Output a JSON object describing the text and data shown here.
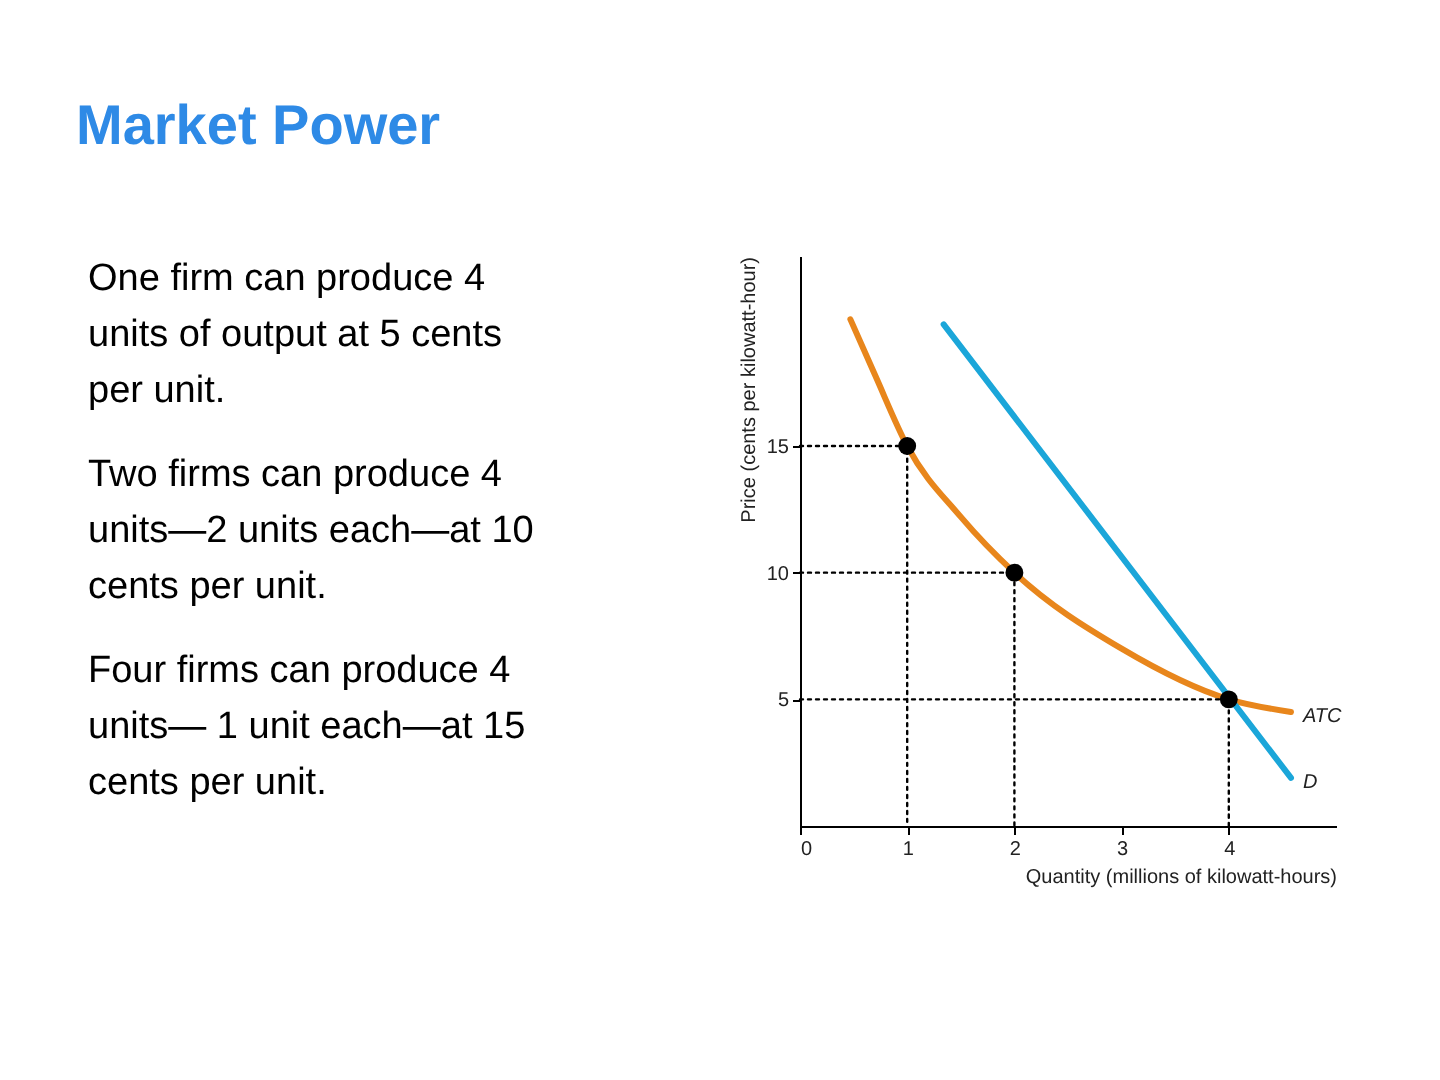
{
  "chart_data": {
    "type": "line",
    "title": "Market Power",
    "annotations": [
      "One firm can produce 4 units of output at 5 cents per unit.",
      "Two firms can produce 4 units—2 units each—at 10 cents per unit.",
      "Four firms can produce 4 units— 1 unit each—at 15 cents per unit."
    ],
    "xlabel": "Quantity (millions of kilowatt-hours)",
    "ylabel": "Price (cents per kilowatt-hour)",
    "xlim": [
      0,
      5
    ],
    "xticks": [
      0,
      1,
      2,
      3,
      4
    ],
    "ylim": [
      0,
      22.5
    ],
    "yticks": [
      5,
      10,
      15
    ],
    "grid": false,
    "legend": false,
    "series": [
      {
        "name": "ATC",
        "color": "#e8861c",
        "x": [
          0.47,
          0.7,
          1,
          1.5,
          2,
          3,
          4,
          4.58
        ],
        "values": [
          20.0,
          17.8,
          15,
          12.2,
          10,
          7.0,
          5,
          4.5
        ]
      },
      {
        "name": "D",
        "color": "#1ba6d9",
        "x": [
          1.34,
          4.58
        ],
        "values": [
          19.8,
          1.9
        ]
      },
      {
        "line_style": "dotted",
        "color": "#000000",
        "x": [
          0,
          1,
          1
        ],
        "values": [
          15,
          15,
          0
        ]
      },
      {
        "line_style": "dotted",
        "color": "#000000",
        "x": [
          0,
          2,
          2
        ],
        "values": [
          10,
          10,
          0
        ]
      },
      {
        "line_style": "dotted",
        "color": "#000000",
        "x": [
          0,
          4,
          4
        ],
        "values": [
          5,
          5,
          0
        ]
      },
      {
        "type": "scatter",
        "marker": "circle",
        "color": "#000000",
        "x": [
          1,
          2,
          4
        ],
        "values": [
          15,
          10,
          5
        ]
      }
    ]
  }
}
